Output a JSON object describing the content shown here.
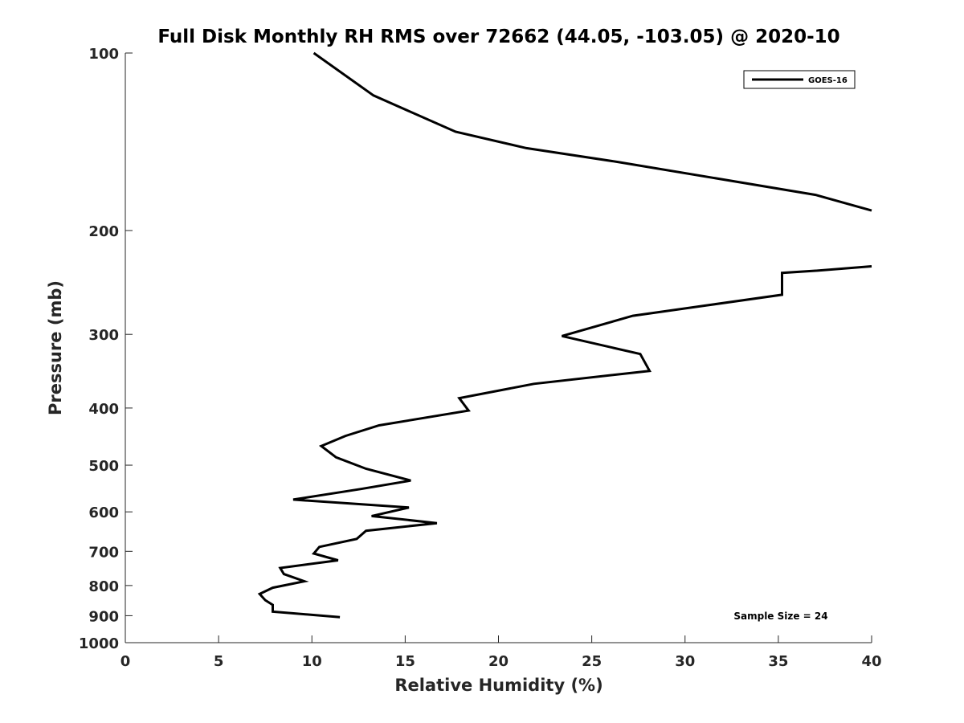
{
  "chart_data": {
    "type": "line",
    "title": "Full Disk Monthly RH RMS over 72662 (44.05, -103.05) @ 2020-10",
    "xlabel": "Relative Humidity (%)",
    "ylabel": "Pressure (mb)",
    "xlim": [
      0,
      40
    ],
    "ylim": [
      100,
      1000
    ],
    "yscale": "log",
    "y_reversed": true,
    "grid": false,
    "legend_position": "top-right",
    "x_ticks": [
      0,
      5,
      10,
      15,
      20,
      25,
      30,
      35,
      40
    ],
    "x_tick_labels": [
      "0",
      "5",
      "10",
      "15",
      "20",
      "25",
      "30",
      "35",
      "40"
    ],
    "y_ticks": [
      100,
      200,
      300,
      400,
      500,
      600,
      700,
      800,
      900,
      1000
    ],
    "y_tick_labels": [
      "100",
      "200",
      "300",
      "400",
      "500",
      "600",
      "700",
      "800",
      "900",
      "1000"
    ],
    "series": [
      {
        "name": "GOES-16",
        "color": "#000000",
        "segments": [
          [
            {
              "x": 10.1,
              "y": 100
            },
            {
              "x": 13.3,
              "y": 118
            },
            {
              "x": 17.7,
              "y": 136
            },
            {
              "x": 21.5,
              "y": 145
            },
            {
              "x": 26.4,
              "y": 153
            },
            {
              "x": 37.0,
              "y": 174
            },
            {
              "x": 40.0,
              "y": 185
            }
          ],
          [
            {
              "x": 40.0,
              "y": 230
            },
            {
              "x": 37.0,
              "y": 234
            },
            {
              "x": 35.2,
              "y": 236
            },
            {
              "x": 35.2,
              "y": 257
            },
            {
              "x": 27.2,
              "y": 279
            },
            {
              "x": 23.4,
              "y": 302
            },
            {
              "x": 27.6,
              "y": 324
            },
            {
              "x": 28.1,
              "y": 346
            },
            {
              "x": 21.9,
              "y": 364
            },
            {
              "x": 17.9,
              "y": 385
            },
            {
              "x": 18.4,
              "y": 404
            },
            {
              "x": 13.6,
              "y": 428
            },
            {
              "x": 11.8,
              "y": 446
            },
            {
              "x": 10.5,
              "y": 464
            },
            {
              "x": 11.3,
              "y": 485
            },
            {
              "x": 12.9,
              "y": 507
            },
            {
              "x": 15.3,
              "y": 531
            },
            {
              "x": 12.6,
              "y": 549
            },
            {
              "x": 9.0,
              "y": 572
            },
            {
              "x": 15.2,
              "y": 590
            },
            {
              "x": 13.2,
              "y": 610
            },
            {
              "x": 16.7,
              "y": 627
            },
            {
              "x": 12.9,
              "y": 646
            },
            {
              "x": 12.4,
              "y": 667
            },
            {
              "x": 10.4,
              "y": 688
            },
            {
              "x": 10.1,
              "y": 706
            },
            {
              "x": 11.4,
              "y": 725
            },
            {
              "x": 8.3,
              "y": 747
            },
            {
              "x": 8.5,
              "y": 765
            },
            {
              "x": 9.6,
              "y": 787
            },
            {
              "x": 7.9,
              "y": 807
            },
            {
              "x": 7.2,
              "y": 827
            },
            {
              "x": 7.5,
              "y": 847
            },
            {
              "x": 7.9,
              "y": 863
            },
            {
              "x": 7.9,
              "y": 886
            },
            {
              "x": 11.5,
              "y": 905
            }
          ]
        ]
      }
    ],
    "annotations": [
      {
        "text": "Sample Size = 24",
        "position": "bottom-right"
      }
    ]
  }
}
